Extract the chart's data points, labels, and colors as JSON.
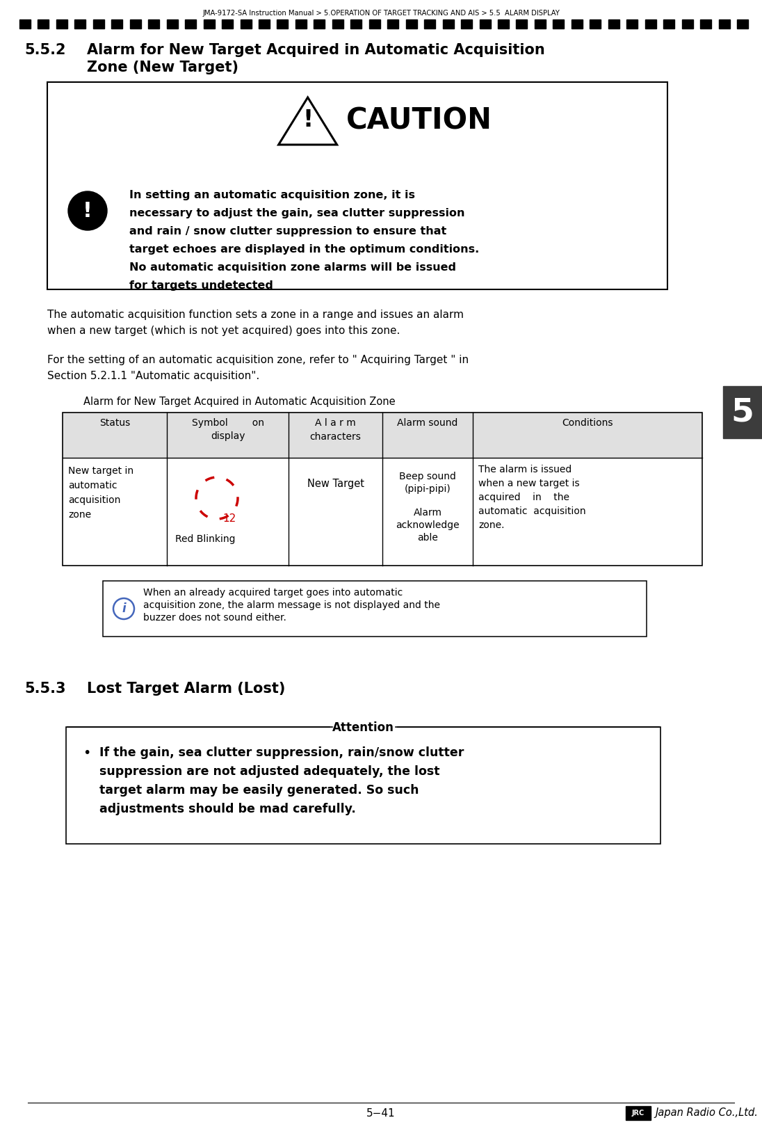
{
  "page_title": "JMA-9172-SA Instruction Manual > 5.OPERATION OF TARGET TRACKING AND AIS > 5.5  ALARM DISPLAY",
  "section_number": "5.5.2",
  "section_title_line1": "Alarm for New Target Acquired in Automatic Acquisition",
  "section_title_line2": "Zone (New Target)",
  "caution_title": "CAUTION",
  "caution_body_line1": "In setting an automatic acquisition zone, it is",
  "caution_body_line2": "necessary to adjust the gain, sea clutter suppression",
  "caution_body_line3": "and rain / snow clutter suppression to ensure that",
  "caution_body_line4": "target echoes are displayed in the optimum conditions.",
  "caution_body_line5": "No automatic acquisition zone alarms will be issued",
  "caution_body_line6": "for targets undetected",
  "body_para1_line1": "The automatic acquisition function sets a zone in a range and issues an alarm",
  "body_para1_line2": "when a new target (which is not yet acquired) goes into this zone.",
  "body_para2_line1": "For the setting of an automatic acquisition zone, refer to \" Acquiring Target \" in",
  "body_para2_line2": "Section 5.2.1.1 \"Automatic acquisition\".",
  "table_title": "Alarm for New Target Acquired in Automatic Acquisition Zone",
  "table_header_col0": "Status",
  "table_header_col1": "Symbol        on\ndisplay",
  "table_header_col2": "A l a r m\ncharacters",
  "table_header_col3": "Alarm sound",
  "table_header_col4": "Conditions",
  "table_row_status": "New target in\nautomatic\nacquisition\nzone",
  "table_row_alarm_chars": "New Target",
  "table_row_alarm_sound_1": "Beep sound",
  "table_row_alarm_sound_2": "(pipi-pipi)",
  "table_row_alarm_sound_3": "Alarm",
  "table_row_alarm_sound_4": "acknowledge",
  "table_row_alarm_sound_5": "able",
  "table_row_conditions": "The alarm is issued\nwhen a new target is\nacquired    in    the\nautomatic  acquisition\nzone.",
  "table_symbol_label": "Red Blinking",
  "table_symbol_number": "12",
  "info_box_line1": "When an already acquired target goes into automatic",
  "info_box_line2": "acquisition zone, the alarm message is not displayed and the",
  "info_box_line3": "buzzer does not sound either.",
  "section_553": "5.5.3",
  "section_553_title": "Lost Target Alarm (Lost)",
  "attention_title": "Attention",
  "attention_bullet_line1": "If the gain, sea clutter suppression, rain/snow clutter",
  "attention_bullet_line2": "suppression are not adjusted adequately, the lost",
  "attention_bullet_line3": "target alarm may be easily generated. So such",
  "attention_bullet_line4": "adjustments should be mad carefully.",
  "page_number": "5−41",
  "chapter_tab": "5",
  "bg_color": "#ffffff",
  "border_color": "#000000",
  "tab_color": "#3c3c3c",
  "tab_text_color": "#ffffff",
  "red_color": "#cc0000",
  "gray_header": "#e0e0e0",
  "dash_color": "#000000"
}
